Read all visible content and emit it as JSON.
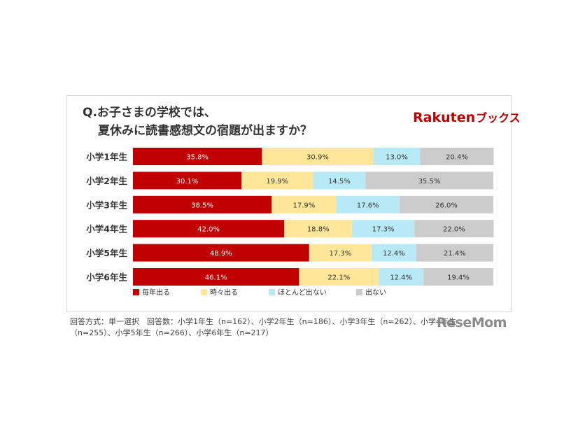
{
  "title_line1": "Q.お子さまの学校では、",
  "title_line2": "夏休みに読書感想文の宿題が出ますか？",
  "brand": {
    "name": "Rakuten",
    "sub": "ブックス"
  },
  "watermark": "ReseMom",
  "footnote_line1": "回答方式：単一選択　回答数：小学1年生（n=162）、小学2年生（n=186）、小学3年生（n=262）、小学4年生",
  "footnote_line2": "（n=255）、小学5年生（n=266）、小学6年生（n=217）",
  "colors": {
    "毎年出る": "#c00000",
    "時々出る": "#ffe699",
    "ほとんど出ない": "#b7e9f7",
    "出ない": "#cccccc"
  },
  "chart_data": {
    "type": "bar",
    "orientation": "horizontal",
    "stacked": true,
    "percent": true,
    "categories": [
      "小学1年生",
      "小学2年生",
      "小学3年生",
      "小学4年生",
      "小学5年生",
      "小学6年生"
    ],
    "series": [
      {
        "name": "毎年出る",
        "values": [
          35.8,
          30.1,
          38.5,
          42.0,
          48.9,
          46.1
        ]
      },
      {
        "name": "時々出る",
        "values": [
          30.9,
          19.9,
          17.9,
          18.8,
          17.3,
          22.1
        ]
      },
      {
        "name": "ほとんど出ない",
        "values": [
          13.0,
          14.5,
          17.6,
          17.3,
          12.4,
          12.4
        ]
      },
      {
        "name": "出ない",
        "values": [
          20.4,
          35.5,
          26.0,
          22.0,
          21.4,
          19.4
        ]
      }
    ],
    "xlim": [
      0,
      100
    ],
    "legend_position": "bottom"
  }
}
